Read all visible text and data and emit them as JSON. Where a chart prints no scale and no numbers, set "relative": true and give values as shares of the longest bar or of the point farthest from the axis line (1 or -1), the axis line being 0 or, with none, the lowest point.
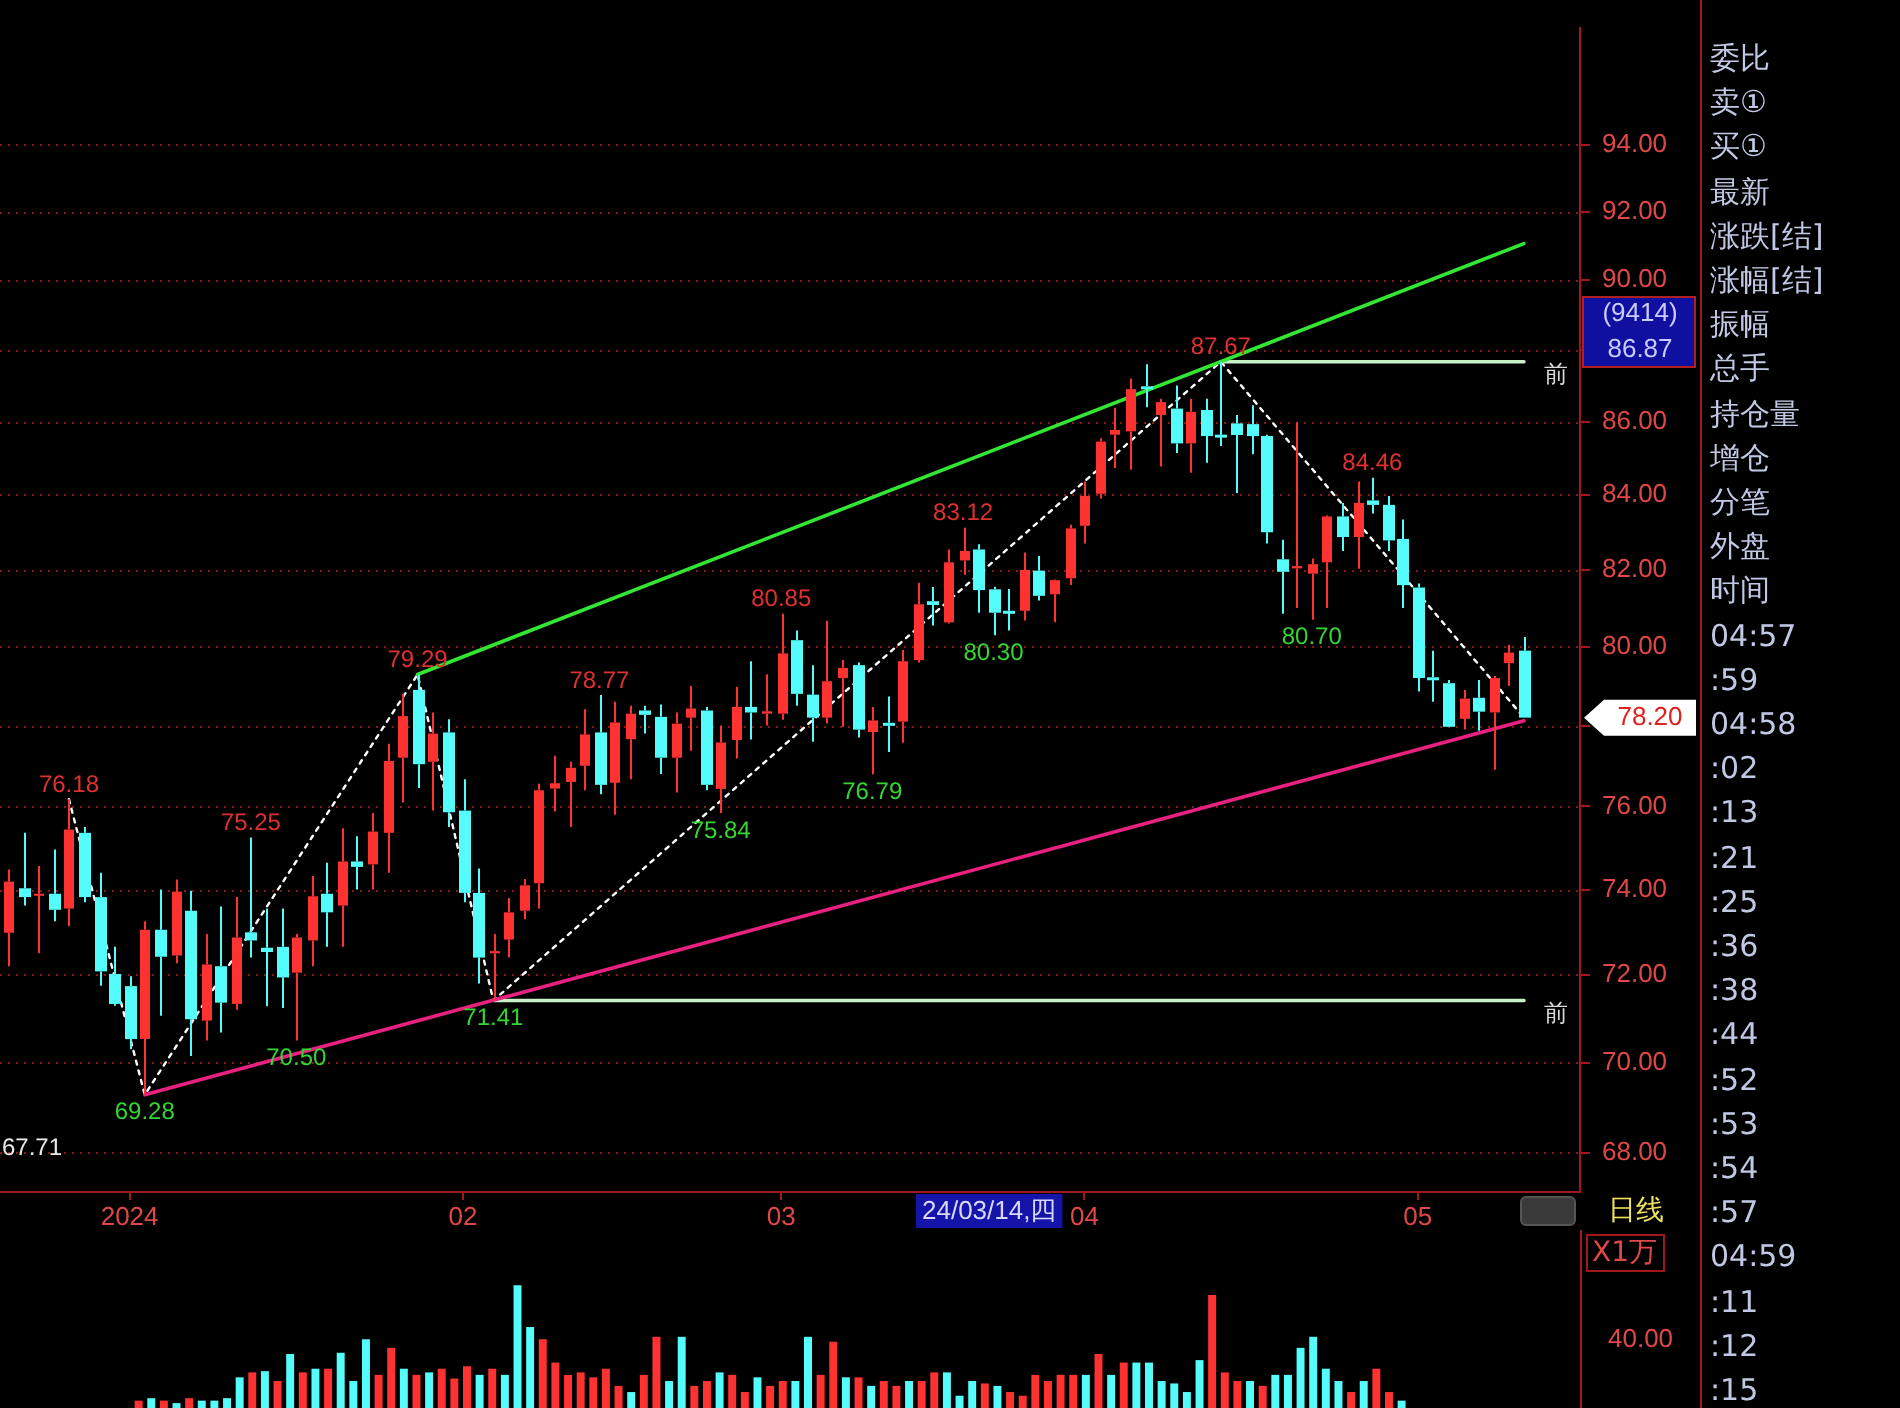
{
  "chart_data": [
    {
      "type": "candlestick",
      "categories": [
        null,
        null,
        null,
        null,
        null,
        null,
        null,
        null,
        "2024",
        null,
        null,
        null,
        null,
        null,
        null,
        null,
        null,
        null,
        null,
        null,
        null,
        null,
        null,
        null,
        null,
        null,
        null,
        null,
        null,
        null,
        "02",
        null,
        null,
        null,
        null,
        null,
        null,
        null,
        null,
        null,
        null,
        null,
        null,
        null,
        null,
        null,
        null,
        null,
        null,
        null,
        null,
        "03",
        null,
        null,
        null,
        null,
        null,
        null,
        null,
        null,
        null,
        null,
        null,
        null,
        null,
        null,
        null,
        null,
        null,
        null,
        null,
        "04",
        null,
        null,
        null,
        null,
        null,
        null,
        null,
        null,
        null,
        null,
        null,
        null,
        null,
        null,
        null,
        null,
        null,
        null,
        null,
        null,
        null,
        "05",
        null,
        null,
        null,
        null,
        null,
        null,
        null
      ],
      "ohlc": [
        [
          72.98,
          74.48,
          72.2,
          74.19
        ],
        [
          74.03,
          75.36,
          73.62,
          73.82
        ],
        [
          73.88,
          74.56,
          72.5,
          73.9
        ],
        [
          73.9,
          74.96,
          73.25,
          73.52
        ],
        [
          73.55,
          76.18,
          73.13,
          75.44
        ],
        [
          75.36,
          75.5,
          73.7,
          73.82
        ],
        [
          73.82,
          74.4,
          71.75,
          72.08
        ],
        [
          72.02,
          72.65,
          71.29,
          71.33
        ],
        [
          71.74,
          71.97,
          70.3,
          70.53
        ],
        [
          70.53,
          73.25,
          69.28,
          73.05
        ],
        [
          73.05,
          74.0,
          71.06,
          72.42
        ],
        [
          72.45,
          74.24,
          72.27,
          73.95
        ],
        [
          73.5,
          73.97,
          70.15,
          70.98
        ],
        [
          70.95,
          72.95,
          70.5,
          72.24
        ],
        [
          72.2,
          73.6,
          70.68,
          71.36
        ],
        [
          71.33,
          73.82,
          71.2,
          72.87
        ],
        [
          72.99,
          75.25,
          72.4,
          72.8
        ],
        [
          72.63,
          73.55,
          71.28,
          72.53
        ],
        [
          72.65,
          73.55,
          71.24,
          71.94
        ],
        [
          72.05,
          72.95,
          70.5,
          72.87
        ],
        [
          72.8,
          74.32,
          72.2,
          73.84
        ],
        [
          73.9,
          74.64,
          72.65,
          73.46
        ],
        [
          73.62,
          75.47,
          72.65,
          74.67
        ],
        [
          74.67,
          75.28,
          74.0,
          74.54
        ],
        [
          74.6,
          75.84,
          74.0,
          75.39
        ],
        [
          75.36,
          77.55,
          74.4,
          77.12
        ],
        [
          77.2,
          78.8,
          76.1,
          78.24
        ],
        [
          78.9,
          79.29,
          76.45,
          77.04
        ],
        [
          77.1,
          78.33,
          75.9,
          77.8
        ],
        [
          77.83,
          78.16,
          75.5,
          75.86
        ],
        [
          75.9,
          76.67,
          73.7,
          73.92
        ],
        [
          73.92,
          74.5,
          71.8,
          72.4
        ],
        [
          72.5,
          72.95,
          71.41,
          72.55
        ],
        [
          72.82,
          73.8,
          72.4,
          73.46
        ],
        [
          73.5,
          74.25,
          73.3,
          74.1
        ],
        [
          74.15,
          76.56,
          73.55,
          76.4
        ],
        [
          76.44,
          77.25,
          75.88,
          76.57
        ],
        [
          76.6,
          77.1,
          75.5,
          76.95
        ],
        [
          77.0,
          78.41,
          76.4,
          77.78
        ],
        [
          77.83,
          78.77,
          76.3,
          76.53
        ],
        [
          76.58,
          78.6,
          75.8,
          78.08
        ],
        [
          77.66,
          78.5,
          76.67,
          78.3
        ],
        [
          78.38,
          78.5,
          77.8,
          78.27
        ],
        [
          78.22,
          78.53,
          76.8,
          77.2
        ],
        [
          77.2,
          78.33,
          76.34,
          78.05
        ],
        [
          78.2,
          79.0,
          77.37,
          78.43
        ],
        [
          78.38,
          78.47,
          76.4,
          76.53
        ],
        [
          76.43,
          78.0,
          75.84,
          77.58
        ],
        [
          77.64,
          78.98,
          77.18,
          78.47
        ],
        [
          78.47,
          79.63,
          77.65,
          78.33
        ],
        [
          78.3,
          79.3,
          78.0,
          78.36
        ],
        [
          78.3,
          80.85,
          78.15,
          79.83
        ],
        [
          80.17,
          80.42,
          78.5,
          78.8
        ],
        [
          78.78,
          79.53,
          77.6,
          78.2
        ],
        [
          78.2,
          80.67,
          78.05,
          79.12
        ],
        [
          79.2,
          79.66,
          77.97,
          79.46
        ],
        [
          79.53,
          79.6,
          77.7,
          77.9
        ],
        [
          77.84,
          78.47,
          76.79,
          78.13
        ],
        [
          78.07,
          78.73,
          77.34,
          78.0
        ],
        [
          78.1,
          79.92,
          77.57,
          79.63
        ],
        [
          79.66,
          81.66,
          79.6,
          81.1
        ],
        [
          81.18,
          81.55,
          80.55,
          81.08
        ],
        [
          80.63,
          82.54,
          80.6,
          82.2
        ],
        [
          82.25,
          83.12,
          81.87,
          82.5
        ],
        [
          82.54,
          82.68,
          80.88,
          81.47
        ],
        [
          81.49,
          81.56,
          80.3,
          80.88
        ],
        [
          80.93,
          81.5,
          80.42,
          80.87
        ],
        [
          80.93,
          82.46,
          80.68,
          82.0
        ],
        [
          81.98,
          82.37,
          81.2,
          81.32
        ],
        [
          81.36,
          81.75,
          80.63,
          81.73
        ],
        [
          81.78,
          83.2,
          81.6,
          83.1
        ],
        [
          83.17,
          84.36,
          82.7,
          83.97
        ],
        [
          84.03,
          85.54,
          83.9,
          85.45
        ],
        [
          85.64,
          86.38,
          84.73,
          85.77
        ],
        [
          85.73,
          87.2,
          84.68,
          86.9
        ],
        [
          86.98,
          87.6,
          86.4,
          86.9
        ],
        [
          86.18,
          86.63,
          84.77,
          86.54
        ],
        [
          86.36,
          87.0,
          85.14,
          85.4
        ],
        [
          85.4,
          86.63,
          84.6,
          86.27
        ],
        [
          86.32,
          86.63,
          84.87,
          85.6
        ],
        [
          85.64,
          87.67,
          85.33,
          85.58
        ],
        [
          85.95,
          86.18,
          84.05,
          85.63
        ],
        [
          85.93,
          86.45,
          85.1,
          85.6
        ],
        [
          85.6,
          85.64,
          82.7,
          83.0
        ],
        [
          82.28,
          82.8,
          80.85,
          81.95
        ],
        [
          82.04,
          85.98,
          81.0,
          82.1
        ],
        [
          81.9,
          82.3,
          80.7,
          82.15
        ],
        [
          82.2,
          83.45,
          81.0,
          83.42
        ],
        [
          83.42,
          83.78,
          82.5,
          82.87
        ],
        [
          82.87,
          84.36,
          82.03,
          83.78
        ],
        [
          83.85,
          84.46,
          83.5,
          83.73
        ],
        [
          83.73,
          83.97,
          82.5,
          82.78
        ],
        [
          82.82,
          83.34,
          81.0,
          81.6
        ],
        [
          81.54,
          81.64,
          78.86,
          79.2
        ],
        [
          79.22,
          79.9,
          78.6,
          79.15
        ],
        [
          79.07,
          79.15,
          77.97,
          77.97
        ],
        [
          78.17,
          78.9,
          77.9,
          78.68
        ],
        [
          78.7,
          79.15,
          77.87,
          78.35
        ],
        [
          78.33,
          79.25,
          76.9,
          79.2
        ],
        [
          79.58,
          80.05,
          79.0,
          79.85
        ],
        [
          79.9,
          80.25,
          78.2,
          78.2
        ]
      ],
      "value_labels": [
        null,
        null,
        null,
        null,
        "76.18",
        null,
        null,
        null,
        null,
        "69.28",
        null,
        null,
        null,
        null,
        null,
        null,
        "75.25",
        null,
        null,
        "70.50",
        null,
        null,
        null,
        null,
        null,
        null,
        null,
        "79.29",
        null,
        null,
        null,
        null,
        "71.41",
        null,
        null,
        null,
        null,
        null,
        null,
        "78.77",
        null,
        null,
        null,
        null,
        null,
        null,
        null,
        "75.84",
        null,
        null,
        null,
        "80.85",
        null,
        null,
        null,
        null,
        null,
        "76.79",
        null,
        null,
        null,
        null,
        null,
        "83.12",
        null,
        "80.30",
        null,
        null,
        null,
        null,
        null,
        null,
        null,
        null,
        null,
        null,
        null,
        null,
        null,
        null,
        "87.67",
        null,
        null,
        null,
        null,
        null,
        "80.70",
        null,
        null,
        null,
        "84.46",
        null,
        null,
        null,
        null,
        null,
        null,
        null,
        null,
        null,
        null
      ],
      "colors": [
        "#ff3232",
        "#54fcfc",
        "#ff3232",
        "#54fcfc",
        "#ff3232",
        "#54fcfc",
        "#54fcfc",
        "#54fcfc",
        "#54fcfc",
        "#ff3232",
        "#54fcfc",
        "#ff3232",
        "#54fcfc",
        "#ff3232",
        "#54fcfc",
        "#ff3232",
        "#54fcfc",
        "#54fcfc",
        "#54fcfc",
        "#ff3232",
        "#ff3232",
        "#54fcfc",
        "#ff3232",
        "#54fcfc",
        "#ff3232",
        "#ff3232",
        "#ff3232",
        "#54fcfc",
        "#ff3232",
        "#54fcfc",
        "#54fcfc",
        "#54fcfc",
        "#ff3232",
        "#ff3232",
        "#ff3232",
        "#ff3232",
        "#ff3232",
        "#ff3232",
        "#ff3232",
        "#54fcfc",
        "#ff3232",
        "#ff3232",
        "#54fcfc",
        "#54fcfc",
        "#ff3232",
        "#ff3232",
        "#54fcfc",
        "#ff3232",
        "#ff3232",
        "#54fcfc",
        "#ff3232",
        "#ff3232",
        "#54fcfc",
        "#54fcfc",
        "#ff3232",
        "#ff3232",
        "#54fcfc",
        "#ff3232",
        "#54fcfc",
        "#ff3232",
        "#ff3232",
        "#54fcfc",
        "#ff3232",
        "#ff3232",
        "#54fcfc",
        "#54fcfc",
        "#54fcfc",
        "#ff3232",
        "#54fcfc",
        "#ff3232",
        "#ff3232",
        "#ff3232",
        "#ff3232",
        "#ff3232",
        "#ff3232",
        "#54fcfc",
        "#ff3232",
        "#54fcfc",
        "#ff3232",
        "#54fcfc",
        "#54fcfc",
        "#54fcfc",
        "#54fcfc",
        "#54fcfc",
        "#54fcfc",
        "#ff3232",
        "#ff3232",
        "#ff3232",
        "#54fcfc",
        "#ff3232",
        "#54fcfc",
        "#54fcfc",
        "#54fcfc",
        "#54fcfc",
        "#54fcfc",
        "#54fcfc",
        "#ff3232",
        "#54fcfc",
        "#ff3232",
        "#ff3232",
        "#54fcfc"
      ],
      "ylim": [
        67.15,
        97.6
      ],
      "yticks": [
        {
          "value": 68,
          "label": "68.00"
        },
        {
          "value": 70,
          "label": "70.00"
        },
        {
          "value": 72,
          "label": "72.00"
        },
        {
          "value": 74,
          "label": "74.00"
        },
        {
          "value": 76,
          "label": "76.00"
        },
        {
          "value": 78,
          "label": null
        },
        {
          "value": 80,
          "label": "80.00"
        },
        {
          "value": 82,
          "label": "82.00"
        },
        {
          "value": 84,
          "label": "84.00"
        },
        {
          "value": 86,
          "label": "86.00"
        },
        {
          "value": 88,
          "label": null
        },
        {
          "value": 90,
          "label": "90.00"
        },
        {
          "value": 92,
          "label": "92.00"
        },
        {
          "value": 94,
          "label": "94.00"
        }
      ],
      "log": true,
      "grid": "y",
      "series": [
        {
          "type": "line",
          "color": "#33e633",
          "values": [
            null,
            null,
            null,
            null,
            null,
            null,
            null,
            null,
            null,
            null,
            null,
            null,
            null,
            null,
            null,
            null,
            null,
            null,
            null,
            null,
            null,
            null,
            null,
            null,
            null,
            null,
            null,
            79.29,
            null,
            null,
            null,
            null,
            null,
            null,
            null,
            null,
            null,
            null,
            null,
            null,
            null,
            null,
            null,
            null,
            null,
            null,
            null,
            null,
            null,
            null,
            null,
            null,
            null,
            null,
            null,
            null,
            null,
            null,
            null,
            null,
            null,
            null,
            null,
            null,
            null,
            null,
            null,
            null,
            null,
            null,
            null,
            null,
            null,
            null,
            null,
            null,
            null,
            null,
            null,
            null,
            null,
            null,
            null,
            null,
            null,
            null,
            null,
            null,
            null,
            null,
            null,
            null,
            null,
            null,
            null,
            null,
            null,
            null,
            null,
            null,
            91.06
          ]
        },
        {
          "type": "line",
          "color": "#e8207f",
          "values": [
            null,
            null,
            null,
            null,
            null,
            null,
            null,
            null,
            null,
            69.28,
            null,
            null,
            null,
            null,
            null,
            null,
            null,
            null,
            null,
            null,
            null,
            null,
            null,
            null,
            null,
            null,
            null,
            null,
            null,
            null,
            null,
            null,
            null,
            null,
            null,
            null,
            null,
            null,
            null,
            null,
            null,
            null,
            null,
            null,
            null,
            null,
            null,
            null,
            null,
            null,
            null,
            null,
            null,
            null,
            null,
            null,
            null,
            null,
            null,
            null,
            null,
            null,
            null,
            null,
            null,
            null,
            null,
            null,
            null,
            null,
            null,
            null,
            null,
            null,
            null,
            null,
            null,
            null,
            null,
            null,
            null,
            null,
            null,
            null,
            null,
            null,
            null,
            null,
            null,
            null,
            null,
            null,
            null,
            null,
            null,
            null,
            null,
            null,
            null,
            null,
            78.12
          ]
        },
        {
          "type": "line",
          "name": "前",
          "color": "#c8f0c8",
          "values": [
            null,
            null,
            null,
            null,
            null,
            null,
            null,
            null,
            null,
            null,
            null,
            null,
            null,
            null,
            null,
            null,
            null,
            null,
            null,
            null,
            null,
            null,
            null,
            null,
            null,
            null,
            null,
            null,
            null,
            null,
            null,
            null,
            null,
            null,
            null,
            null,
            null,
            null,
            null,
            null,
            null,
            null,
            null,
            null,
            null,
            null,
            null,
            null,
            null,
            null,
            null,
            null,
            null,
            null,
            null,
            null,
            null,
            null,
            null,
            null,
            null,
            null,
            null,
            null,
            null,
            null,
            null,
            null,
            null,
            null,
            null,
            null,
            null,
            null,
            null,
            null,
            null,
            null,
            null,
            null,
            87.67,
            null,
            null,
            null,
            null,
            null,
            null,
            null,
            null,
            null,
            null,
            null,
            null,
            null,
            null,
            null,
            null,
            null,
            null,
            null,
            87.67
          ]
        },
        {
          "type": "line",
          "name": "前",
          "color": "#c8f0c8",
          "values": [
            null,
            null,
            null,
            null,
            null,
            null,
            null,
            null,
            null,
            null,
            null,
            null,
            null,
            null,
            null,
            null,
            null,
            null,
            null,
            null,
            null,
            null,
            null,
            null,
            null,
            null,
            null,
            null,
            null,
            null,
            null,
            null,
            71.41,
            null,
            null,
            null,
            null,
            null,
            null,
            null,
            null,
            null,
            null,
            null,
            null,
            null,
            null,
            null,
            null,
            null,
            null,
            null,
            null,
            null,
            null,
            null,
            null,
            null,
            null,
            null,
            null,
            null,
            null,
            null,
            null,
            null,
            null,
            null,
            null,
            null,
            null,
            null,
            null,
            null,
            null,
            null,
            null,
            null,
            null,
            null,
            null,
            null,
            null,
            null,
            null,
            null,
            null,
            null,
            null,
            null,
            null,
            null,
            null,
            null,
            null,
            null,
            null,
            null,
            null,
            null,
            71.41
          ]
        },
        {
          "type": "line",
          "color": "#ffffff",
          "line_style": "dotted",
          "values": [
            null,
            null,
            null,
            null,
            76.18,
            null,
            null,
            null,
            null,
            69.28,
            null,
            null,
            null,
            null,
            null,
            null,
            null,
            null,
            null,
            null,
            null,
            null,
            null,
            null,
            null,
            null,
            null,
            79.29,
            null,
            null,
            null,
            null,
            71.41,
            null,
            null,
            null,
            null,
            null,
            null,
            null,
            null,
            null,
            null,
            null,
            null,
            null,
            null,
            null,
            null,
            null,
            null,
            null,
            null,
            null,
            null,
            null,
            null,
            null,
            null,
            null,
            null,
            null,
            null,
            null,
            null,
            null,
            null,
            null,
            null,
            null,
            null,
            null,
            null,
            null,
            null,
            null,
            null,
            null,
            null,
            null,
            87.67,
            null,
            null,
            null,
            null,
            null,
            null,
            null,
            null,
            null,
            null,
            null,
            null,
            null,
            null,
            null,
            null,
            null,
            null,
            null,
            78.2
          ]
        }
      ],
      "annotations": [
        "(9414)",
        "86.87",
        "78.20",
        "24/03/14,四",
        "67.71",
        "日线"
      ]
    },
    {
      "type": "bar",
      "relative": true,
      "tick_labels": false,
      "ylabel": "X1万",
      "annotations": [
        "40.00"
      ],
      "categories": [
        null,
        null,
        null,
        null,
        null,
        null,
        null,
        null,
        null,
        null,
        null,
        null,
        null,
        null,
        null,
        null,
        null,
        null,
        null,
        null,
        null,
        null,
        null,
        null,
        null,
        null,
        null,
        null,
        null,
        null,
        null,
        null,
        null,
        null,
        null,
        null,
        null,
        null,
        null,
        null,
        null,
        null,
        null,
        null,
        null,
        null,
        null,
        null,
        null,
        null,
        null,
        null,
        null,
        null,
        null,
        null,
        null,
        null,
        null,
        null,
        null,
        null,
        null,
        null,
        null,
        null,
        null,
        null,
        null,
        null,
        null,
        null,
        null,
        null,
        null,
        null,
        null,
        null,
        null,
        null,
        null,
        null,
        null,
        null,
        null,
        null,
        null,
        null,
        null,
        null,
        null,
        null,
        null,
        null,
        null,
        null,
        null,
        null,
        null,
        null,
        null
      ],
      "values": [
        0.06,
        0.08,
        0.06,
        0.04,
        0.08,
        0.06,
        0.06,
        0.08,
        0.25,
        0.29,
        0.3,
        0.22,
        0.44,
        0.29,
        0.32,
        0.32,
        0.45,
        0.22,
        0.56,
        0.27,
        0.49,
        0.32,
        0.27,
        0.29,
        0.32,
        0.24,
        0.34,
        0.27,
        0.32,
        0.27,
        1,
        0.66,
        0.56,
        0.37,
        0.27,
        0.29,
        0.25,
        0.32,
        0.18,
        0.13,
        0.27,
        0.58,
        0.22,
        0.58,
        0.18,
        0.22,
        0.29,
        0.27,
        0.13,
        0.25,
        0.18,
        0.22,
        0.22,
        0.58,
        0.27,
        0.54,
        0.25,
        0.25,
        0.18,
        0.22,
        0.18,
        0.22,
        0.22,
        0.29,
        0.29,
        0.1,
        0.22,
        0.2,
        0.18,
        0.13,
        0.1,
        0.27,
        0.22,
        0.27,
        0.27,
        0.27,
        0.44,
        0.27,
        0.37,
        0.37,
        0.37,
        0.22,
        0.2,
        0.13,
        0.39,
        0.92,
        0.29,
        0.22,
        0.22,
        0.18,
        0.27,
        0.27,
        0.49,
        0.58,
        0.32,
        0.22,
        0.13,
        0.22,
        0.32,
        0.13,
        0.06
      ],
      "colors": [
        "#ff3232",
        "#54fcfc",
        "#ff3232",
        "#54fcfc",
        "#ff3232",
        "#54fcfc",
        "#54fcfc",
        "#54fcfc",
        "#54fcfc",
        "#ff3232",
        "#54fcfc",
        "#ff3232",
        "#54fcfc",
        "#ff3232",
        "#54fcfc",
        "#ff3232",
        "#54fcfc",
        "#54fcfc",
        "#54fcfc",
        "#ff3232",
        "#ff3232",
        "#54fcfc",
        "#ff3232",
        "#54fcfc",
        "#ff3232",
        "#ff3232",
        "#ff3232",
        "#54fcfc",
        "#ff3232",
        "#54fcfc",
        "#54fcfc",
        "#54fcfc",
        "#ff3232",
        "#ff3232",
        "#ff3232",
        "#ff3232",
        "#ff3232",
        "#ff3232",
        "#ff3232",
        "#54fcfc",
        "#ff3232",
        "#ff3232",
        "#54fcfc",
        "#54fcfc",
        "#ff3232",
        "#ff3232",
        "#54fcfc",
        "#ff3232",
        "#ff3232",
        "#54fcfc",
        "#ff3232",
        "#ff3232",
        "#54fcfc",
        "#54fcfc",
        "#ff3232",
        "#ff3232",
        "#54fcfc",
        "#ff3232",
        "#54fcfc",
        "#ff3232",
        "#ff3232",
        "#54fcfc",
        "#ff3232",
        "#ff3232",
        "#54fcfc",
        "#54fcfc",
        "#54fcfc",
        "#ff3232",
        "#54fcfc",
        "#ff3232",
        "#ff3232",
        "#ff3232",
        "#ff3232",
        "#ff3232",
        "#ff3232",
        "#54fcfc",
        "#ff3232",
        "#54fcfc",
        "#ff3232",
        "#54fcfc",
        "#54fcfc",
        "#54fcfc",
        "#54fcfc",
        "#54fcfc",
        "#54fcfc",
        "#ff3232",
        "#ff3232",
        "#ff3232",
        "#54fcfc",
        "#ff3232",
        "#54fcfc",
        "#54fcfc",
        "#54fcfc",
        "#54fcfc",
        "#54fcfc",
        "#54fcfc",
        "#ff3232",
        "#54fcfc",
        "#ff3232",
        "#ff3232",
        "#54fcfc"
      ]
    },
    {
      "type": "other",
      "annotations": [
        "委比",
        "卖①",
        "买①",
        "最新",
        "涨跌[结]",
        "涨幅[结]",
        "振幅",
        "总手",
        "持仓量",
        "增仓",
        "分笔",
        "外盘",
        "时间",
        "04:57",
        ":59",
        "04:58",
        ":02",
        ":13",
        ":21",
        ":25",
        ":36",
        ":38",
        ":44",
        ":52",
        ":53",
        ":54",
        ":57",
        "04:59",
        ":11",
        ":12",
        ":15"
      ]
    }
  ]
}
